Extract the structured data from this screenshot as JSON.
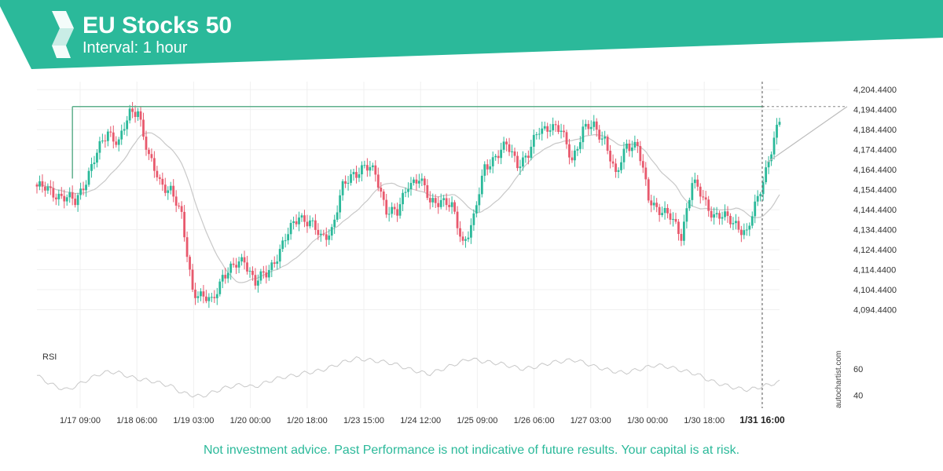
{
  "header": {
    "title": "EU Stocks 50",
    "subtitle": "Interval: 1 hour",
    "logo_icon": "autochartist-logo-icon",
    "banner_color": "#2bb99a"
  },
  "footer": {
    "disclaimer": "Not investment advice. Past Performance is not indicative of future results. Your capital is at risk.",
    "watermark": "autochartist.com"
  },
  "colors": {
    "up": "#2bb99a",
    "down": "#e8596d",
    "resistance": "#5fb08c",
    "ma": "#c8c8c8",
    "rsi": "#c8c8c8",
    "grid": "#f0f0f0"
  },
  "chart_data": {
    "type": "candlestick",
    "title": "EU Stocks 50",
    "interval": "1 hour",
    "price_axis": {
      "min": 4084.44,
      "max": 4208.44,
      "ticks": [
        "4,204.4400",
        "4,194.4400",
        "4,184.4400",
        "4,174.4400",
        "4,164.4400",
        "4,154.4400",
        "4,144.4400",
        "4,134.4400",
        "4,124.4400",
        "4,114.4400",
        "4,104.4400",
        "4,094.4400"
      ]
    },
    "x_axis": {
      "ticks": [
        "1/17 09:00",
        "1/18 06:00",
        "1/19 03:00",
        "1/20 00:00",
        "1/20 18:00",
        "1/23 15:00",
        "1/24 12:00",
        "1/25 09:00",
        "1/26 06:00",
        "1/27 03:00",
        "1/30 00:00",
        "1/30 18:00",
        "1/31 16:00"
      ],
      "highlight": "1/31 16:00"
    },
    "anchors": [
      [
        0,
        4156
      ],
      [
        8,
        4152
      ],
      [
        14,
        4148
      ],
      [
        18,
        4160
      ],
      [
        22,
        4172
      ],
      [
        26,
        4184
      ],
      [
        30,
        4178
      ],
      [
        34,
        4192
      ],
      [
        37,
        4195
      ],
      [
        41,
        4170
      ],
      [
        45,
        4158
      ],
      [
        49,
        4155
      ],
      [
        53,
        4140
      ],
      [
        57,
        4105
      ],
      [
        61,
        4100
      ],
      [
        64,
        4098
      ],
      [
        68,
        4112
      ],
      [
        72,
        4115
      ],
      [
        76,
        4120
      ],
      [
        80,
        4108
      ],
      [
        84,
        4112
      ],
      [
        88,
        4122
      ],
      [
        92,
        4132
      ],
      [
        96,
        4142
      ],
      [
        100,
        4138
      ],
      [
        104,
        4130
      ],
      [
        108,
        4135
      ],
      [
        112,
        4155
      ],
      [
        116,
        4163
      ],
      [
        120,
        4166
      ],
      [
        124,
        4162
      ],
      [
        128,
        4145
      ],
      [
        132,
        4142
      ],
      [
        136,
        4158
      ],
      [
        140,
        4160
      ],
      [
        144,
        4148
      ],
      [
        148,
        4150
      ],
      [
        152,
        4145
      ],
      [
        156,
        4128
      ],
      [
        160,
        4140
      ],
      [
        164,
        4165
      ],
      [
        168,
        4172
      ],
      [
        172,
        4176
      ],
      [
        176,
        4168
      ],
      [
        180,
        4172
      ],
      [
        184,
        4184
      ],
      [
        188,
        4187
      ],
      [
        192,
        4183
      ],
      [
        196,
        4170
      ],
      [
        200,
        4184
      ],
      [
        204,
        4186
      ],
      [
        208,
        4180
      ],
      [
        212,
        4160
      ],
      [
        216,
        4178
      ],
      [
        220,
        4176
      ],
      [
        224,
        4150
      ],
      [
        228,
        4145
      ],
      [
        232,
        4140
      ],
      [
        236,
        4132
      ],
      [
        240,
        4158
      ],
      [
        244,
        4150
      ],
      [
        248,
        4142
      ],
      [
        252,
        4140
      ],
      [
        256,
        4138
      ],
      [
        260,
        4132
      ],
      [
        264,
        4150
      ],
      [
        268,
        4170
      ],
      [
        272,
        4188
      ]
    ],
    "resistance": {
      "level": 4196,
      "start_index": 13,
      "end_index": 272,
      "label_tick": "4,194.4400"
    },
    "projection": {
      "from_index": 272,
      "from_price": 4168,
      "to_price": 4196
    },
    "ma_period": 20,
    "rsi_panel": {
      "label": "RSI",
      "ticks": [
        60,
        40
      ],
      "range": [
        30,
        75
      ],
      "values": [
        55,
        50,
        46,
        44,
        48,
        52,
        56,
        58,
        57,
        54,
        52,
        51,
        49,
        47,
        42,
        40,
        39,
        42,
        45,
        47,
        48,
        46,
        49,
        52,
        54,
        55,
        57,
        58,
        60,
        63,
        66,
        68,
        67,
        66,
        65,
        63,
        60,
        58,
        56,
        59,
        62,
        65,
        68,
        66,
        65,
        64,
        62,
        60,
        61,
        63,
        65,
        66,
        67,
        65,
        62,
        60,
        58,
        57,
        59,
        61,
        63,
        62,
        60,
        58,
        56,
        52,
        49,
        47,
        45,
        44,
        46,
        48,
        50
      ]
    },
    "grid": true
  }
}
